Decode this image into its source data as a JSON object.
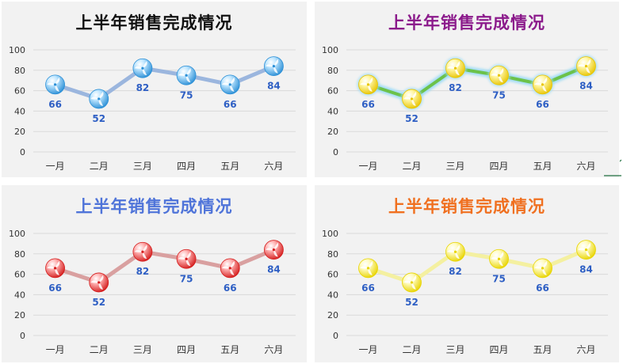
{
  "chart_data": [
    {
      "type": "line",
      "title": "上半年销售完成情况",
      "categories": [
        "一月",
        "二月",
        "三月",
        "四月",
        "五月",
        "六月"
      ],
      "values": [
        66,
        52,
        82,
        75,
        66,
        84
      ],
      "yticks": [
        "0",
        "20",
        "40",
        "60",
        "80",
        "100"
      ],
      "ylim": [
        0,
        100
      ],
      "grid": true,
      "legend": "none",
      "colors": {
        "title": "#111111",
        "line": "#9bb6de",
        "marker": "#2b8fd6",
        "marker_light": "#bfe6ff",
        "label": "#2e5fc4"
      }
    },
    {
      "type": "line",
      "title": "上半年销售完成情况",
      "categories": [
        "一月",
        "二月",
        "三月",
        "四月",
        "五月",
        "六月"
      ],
      "values": [
        66,
        52,
        82,
        75,
        66,
        84
      ],
      "yticks": [
        "0",
        "20",
        "40",
        "60",
        "80",
        "100"
      ],
      "ylim": [
        0,
        100
      ],
      "grid": true,
      "legend": "none",
      "colors": {
        "title": "#8b1a8b",
        "line": "#6cc24a",
        "line_glow": "#9fdcf5",
        "marker": "#e8c400",
        "marker_light": "#fff7a8",
        "label": "#2e5fc4"
      }
    },
    {
      "type": "line",
      "title": "上半年销售完成情况",
      "categories": [
        "一月",
        "二月",
        "三月",
        "四月",
        "五月",
        "六月"
      ],
      "values": [
        66,
        52,
        82,
        75,
        66,
        84
      ],
      "yticks": [
        "0",
        "20",
        "40",
        "60",
        "80",
        "100"
      ],
      "ylim": [
        0,
        100
      ],
      "grid": true,
      "legend": "none",
      "colors": {
        "title": "#4f74d9",
        "line": "#d9a0a0",
        "marker": "#d41c1c",
        "marker_light": "#ffb3b3",
        "label": "#2e5fc4"
      }
    },
    {
      "type": "line",
      "title": "上半年销售完成情况",
      "categories": [
        "一月",
        "二月",
        "三月",
        "四月",
        "五月",
        "六月"
      ],
      "values": [
        66,
        52,
        82,
        75,
        66,
        84
      ],
      "yticks": [
        "0",
        "20",
        "40",
        "60",
        "80",
        "100"
      ],
      "ylim": [
        0,
        100
      ],
      "grid": true,
      "legend": "none",
      "colors": {
        "title": "#f07020",
        "line": "#f4f0a0",
        "marker": "#e8d400",
        "marker_light": "#fffbc0",
        "label": "#2e5fc4"
      }
    }
  ]
}
